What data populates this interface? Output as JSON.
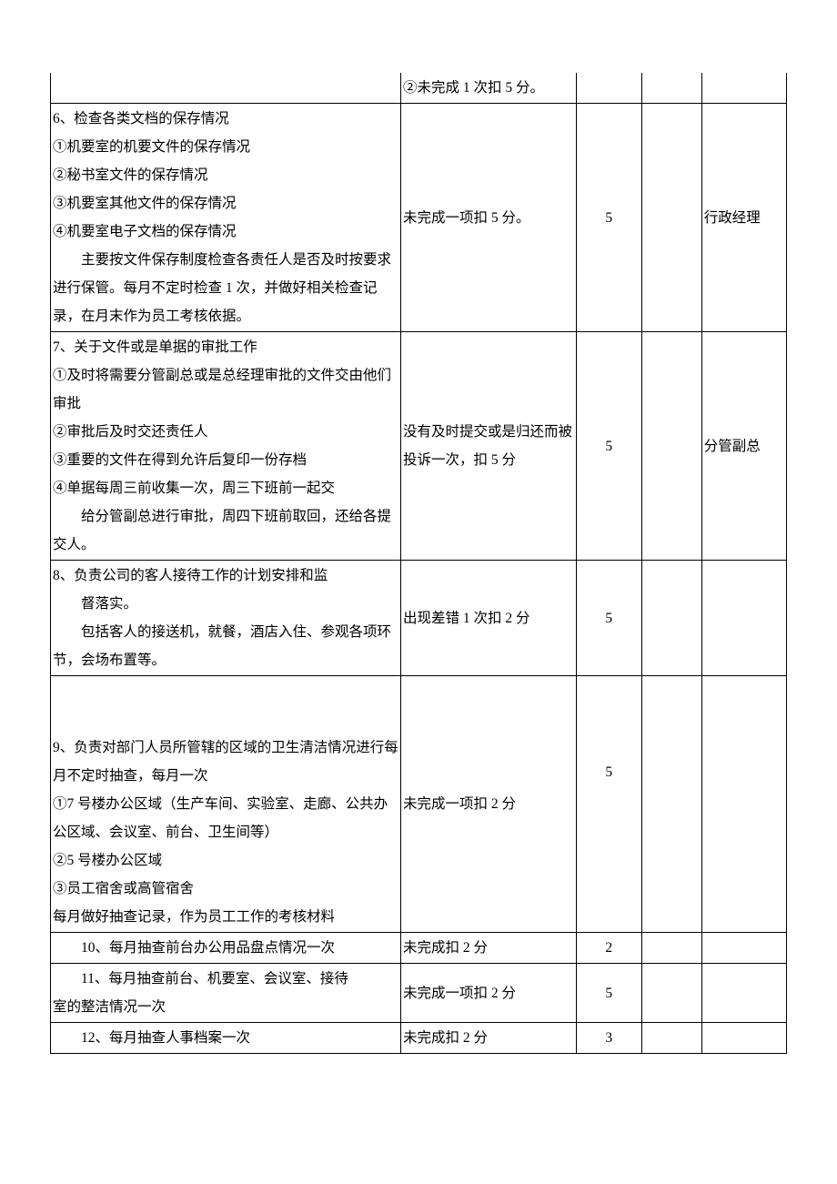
{
  "rows": [
    {
      "desc_lines": [],
      "std": "②未完成 1 次扣 5 分。",
      "score": "",
      "blank": "",
      "resp": ""
    },
    {
      "desc_lines": [
        {
          "t": "6、检查各类文档的保存情况",
          "cls": "line"
        },
        {
          "t": "①机要室的机要文件的保存情况",
          "cls": "line"
        },
        {
          "t": "②秘书室文件的保存情况",
          "cls": "line"
        },
        {
          "t": "③机要室其他文件的保存情况",
          "cls": "line"
        },
        {
          "t": "④机要室电子文档的保存情况",
          "cls": "line"
        },
        {
          "t": "主要按文件保存制度检查各责任人是否及时按要求进行保管。每月不定时检查 1 次，并做好相关检查记录，在月末作为员工考核依据。",
          "cls": "indent"
        }
      ],
      "std": "未完成一项扣 5 分。",
      "score": "5",
      "blank": "",
      "resp": "行政经理"
    },
    {
      "desc_lines": [
        {
          "t": "7、关于文件或是单据的审批工作",
          "cls": "line"
        },
        {
          "t": "①及时将需要分管副总或是总经理审批的文件交由他们审批",
          "cls": "line"
        },
        {
          "t": "②审批后及时交还责任人",
          "cls": "line"
        },
        {
          "t": "③重要的文件在得到允许后复印一份存档",
          "cls": "line"
        },
        {
          "t": "④单据每周三前收集一次，周三下班前一起交",
          "cls": "line"
        },
        {
          "t": "给分管副总进行审批，周四下班前取回，还给各提交人。",
          "cls": "indent"
        }
      ],
      "std": "没有及时提交或是归还而被投诉一次，扣 5 分",
      "score": "5",
      "blank": "",
      "resp": "分管副总"
    },
    {
      "desc_lines": [
        {
          "t": "8、负责公司的客人接待工作的计划安排和监",
          "cls": "line"
        },
        {
          "t": "督落实。",
          "cls": "indent"
        },
        {
          "t": "包括客人的接送机，就餐，酒店入住、参观各项环节，会场布置等。",
          "cls": "indent"
        }
      ],
      "std": "出现差错 1 次扣 2 分",
      "score": "5",
      "blank": "",
      "resp": ""
    },
    {
      "desc_lines": [
        {
          "t": " ",
          "cls": "line"
        },
        {
          "t": " ",
          "cls": "line"
        },
        {
          "t": "9、负责对部门人员所管辖的区域的卫生清洁情况进行每月不定时抽查，每月一次",
          "cls": "line"
        },
        {
          "t": "①7 号楼办公区域（生产车间、实验室、走廊、公共办公区域、会议室、前台、卫生间等）",
          "cls": "line"
        },
        {
          "t": "②5 号楼办公区域",
          "cls": "line"
        },
        {
          "t": "③员工宿舍或高管宿舍",
          "cls": "line"
        },
        {
          "t": "每月做好抽查记录，作为员工工作的考核材料",
          "cls": "line"
        }
      ],
      "std": "未完成一项扣 2 分",
      "score": "5",
      "blank": "",
      "resp": ""
    },
    {
      "desc_lines": [
        {
          "t": "10、每月抽查前台办公用品盘点情况一次",
          "cls": "indent"
        }
      ],
      "std": "未完成扣 2 分",
      "score": "2",
      "blank": "",
      "resp": ""
    },
    {
      "desc_lines": [
        {
          "t": "11、每月抽查前台、机要室、会议室、接待",
          "cls": "indent"
        },
        {
          "t": "室的整洁情况一次",
          "cls": "line"
        }
      ],
      "std": "未完成一项扣 2 分",
      "score": "5",
      "blank": "",
      "resp": ""
    },
    {
      "desc_lines": [
        {
          "t": "12、每月抽查人事档案一次",
          "cls": "indent"
        }
      ],
      "std": "未完成扣 2 分",
      "score": "3",
      "blank": "",
      "resp": ""
    }
  ]
}
